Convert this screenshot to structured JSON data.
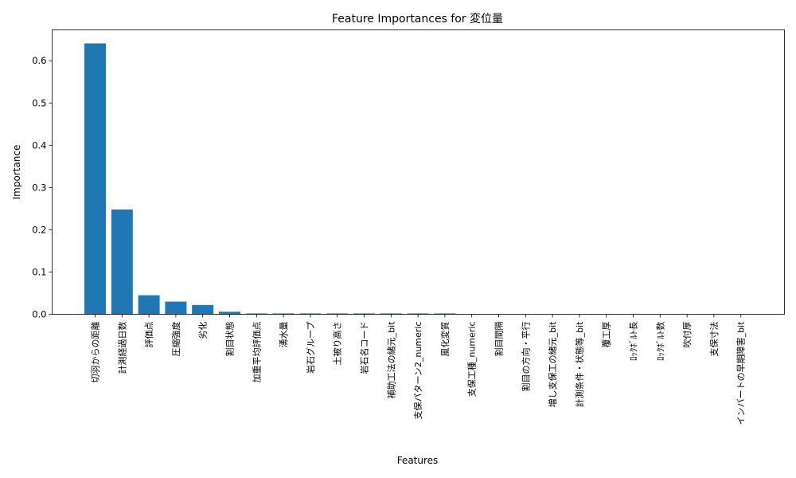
{
  "chart_data": {
    "type": "bar",
    "title": "Feature Importances for 変位量",
    "xlabel": "Features",
    "ylabel": "Importance",
    "ylim": [
      0,
      0.673
    ],
    "yticks": [
      0.0,
      0.1,
      0.2,
      0.3,
      0.4,
      0.5,
      0.6
    ],
    "ytick_labels": [
      "0.0",
      "0.1",
      "0.2",
      "0.3",
      "0.4",
      "0.5",
      "0.6"
    ],
    "grid": false,
    "bar_color": "#1f77b4",
    "categories": [
      "切羽からの距離",
      "計測経過日数",
      "評価点",
      "圧縮強度",
      "劣化",
      "割目状態",
      "加重平均評価点",
      "湧水量",
      "岩石グループ",
      "土被り高さ",
      "岩石名コード",
      "補助工法の緒元_bit",
      "支保パターン2_numeric",
      "風化変質",
      "支保工種_numeric",
      "割目間隔",
      "割目の方向・平行",
      "増し支保工の緒元_bit",
      "計測条件・状態等_bit",
      "覆工厚",
      "ﾛｯｸﾎﾞﾙﾄ長",
      "ﾛｯｸﾎﾞﾙﾄ数",
      "吹付厚",
      "支保寸法",
      "インバートの早期障害_bit"
    ],
    "values": [
      0.641,
      0.248,
      0.045,
      0.03,
      0.022,
      0.006,
      0.002,
      0.002,
      0.002,
      0.002,
      0.002,
      0.002,
      0.002,
      0.002,
      0.0005,
      0.0003,
      0.0002,
      0.0002,
      0.0001,
      0.0001,
      0.0001,
      0.0001,
      0.0001,
      0.0001,
      0.0001
    ]
  }
}
